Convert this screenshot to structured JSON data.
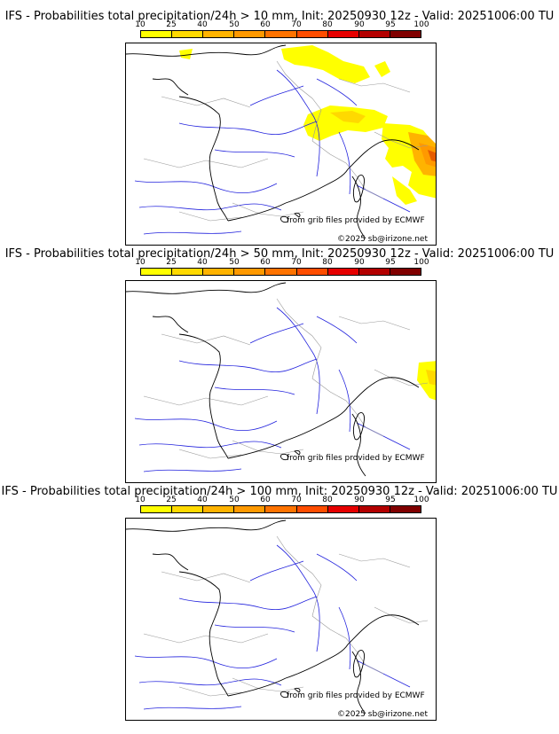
{
  "colors": {
    "scale": [
      "#ffff00",
      "#ffd900",
      "#ffb300",
      "#ff9900",
      "#ff7300",
      "#ff4d00",
      "#e60000",
      "#b30000",
      "#800000",
      "#4d0000"
    ],
    "river": "#2222dd",
    "border": "#999999",
    "coast": "#000000"
  },
  "scale_labels": [
    "10",
    "25",
    "40",
    "50",
    "60",
    "70",
    "80",
    "90",
    "95",
    "100"
  ],
  "panels": [
    {
      "title": "IFS - Probabilities total precipitation/24h > 10 mm, Init: 20250930 12z - Valid: 20251006:00 TU",
      "credit": "from grib files provided by ECMWF",
      "copyright": "©2025 sb@irizone.net"
    },
    {
      "title": "IFS - Probabilities total precipitation/24h > 50 mm, Init: 20250930 12z - Valid: 20251006:00 TU",
      "credit": "from grib files provided by ECMWF",
      "copyright": ""
    },
    {
      "title": "IFS - Probabilities total precipitation/24h > 100 mm, Init: 20250930 12z - Valid: 20251006:00 TU",
      "credit": "from grib files provided by ECMWF",
      "copyright": "©2025 sb@irizone.net"
    }
  ]
}
